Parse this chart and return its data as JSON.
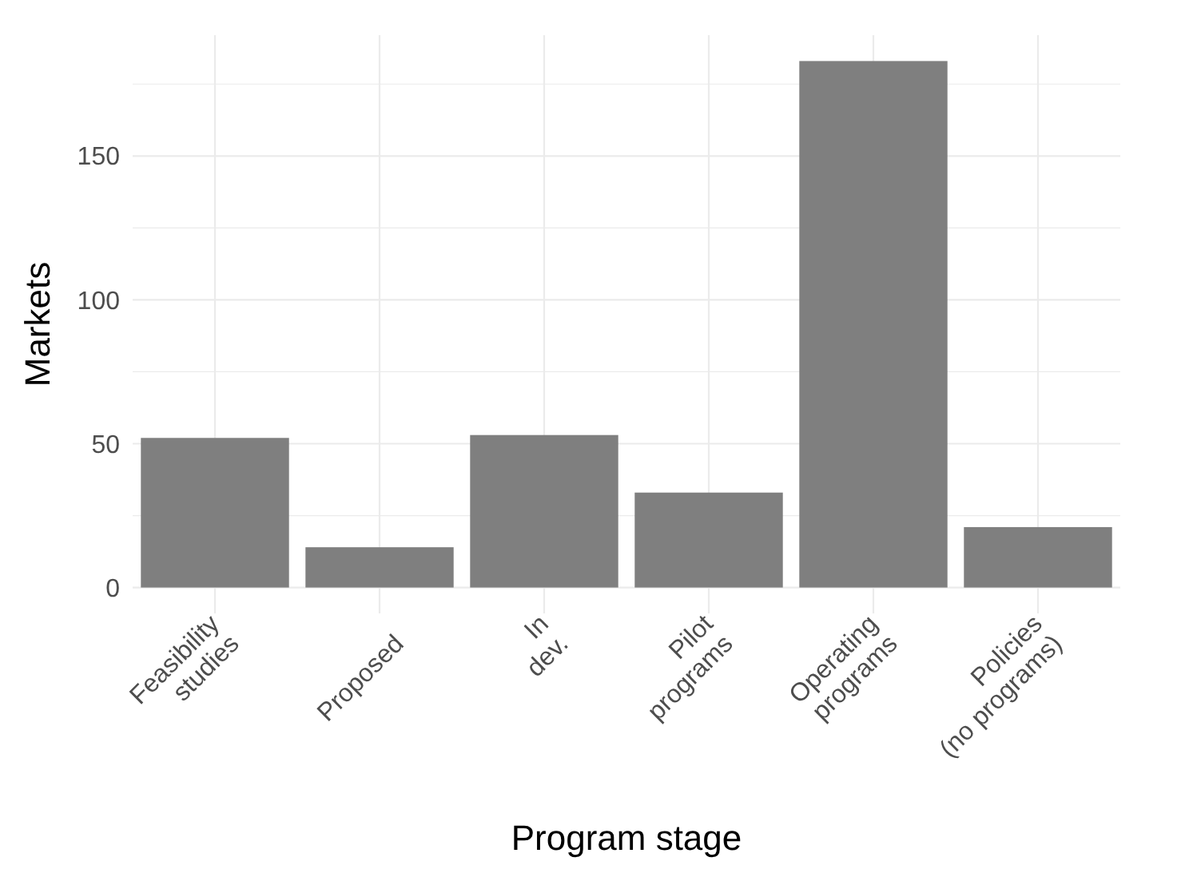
{
  "chart_data": {
    "type": "bar",
    "xlabel": "Program stage",
    "ylabel": "Markets",
    "categories": [
      "Feasibility studies",
      "Proposed",
      "In dev.",
      "Pilot programs",
      "Operating programs",
      "Policies (no programs)"
    ],
    "values": [
      52,
      14,
      53,
      33,
      183,
      21
    ],
    "color": "#7f7f7f",
    "ylim": [
      -9,
      192
    ],
    "yticks": [
      0,
      {
        "value": 25,
        "label": null
      },
      50,
      {
        "value": 75,
        "label": null
      },
      100,
      {
        "value": 125,
        "label": null
      },
      150,
      {
        "value": 175,
        "label": null
      }
    ],
    "grid": true
  }
}
